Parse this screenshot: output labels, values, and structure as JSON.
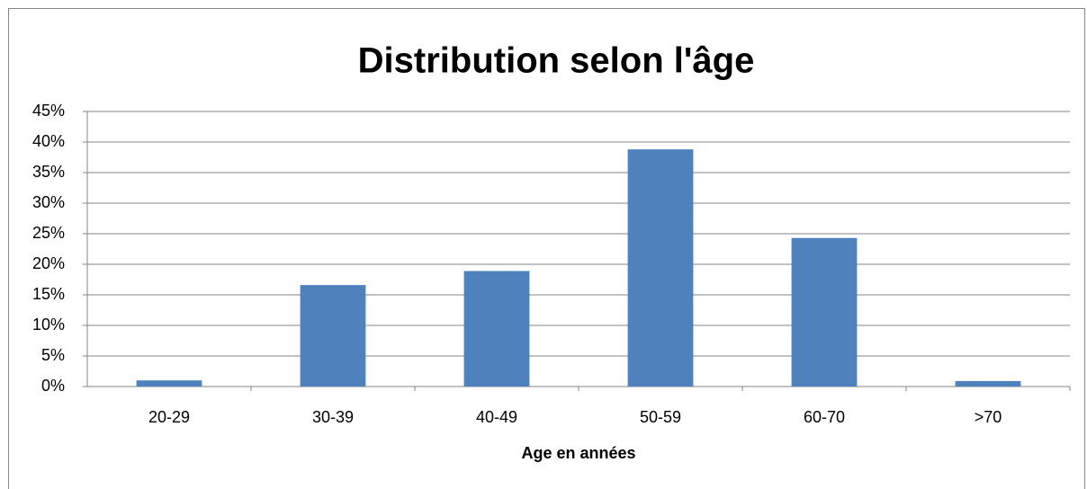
{
  "chart_data": {
    "type": "bar",
    "title": "Distribution selon l'âge",
    "x_label": "Age en années",
    "categories": [
      "20-29",
      "30-39",
      "40-49",
      "50-59",
      "60-70",
      ">70"
    ],
    "values": [
      1.0,
      16.6,
      18.9,
      38.8,
      24.3,
      0.9
    ],
    "color": "#4f81bd",
    "ylim": [
      0,
      45
    ],
    "yticks": [
      {
        "value": 0,
        "label": "0%"
      },
      {
        "value": 5,
        "label": "5%"
      },
      {
        "value": 10,
        "label": "10%"
      },
      {
        "value": 15,
        "label": "15%"
      },
      {
        "value": 20,
        "label": "20%"
      },
      {
        "value": 25,
        "label": "25%"
      },
      {
        "value": 30,
        "label": "30%"
      },
      {
        "value": 35,
        "label": "35%"
      },
      {
        "value": 40,
        "label": "40%"
      },
      {
        "value": 45,
        "label": "45%"
      }
    ],
    "grid": true
  }
}
